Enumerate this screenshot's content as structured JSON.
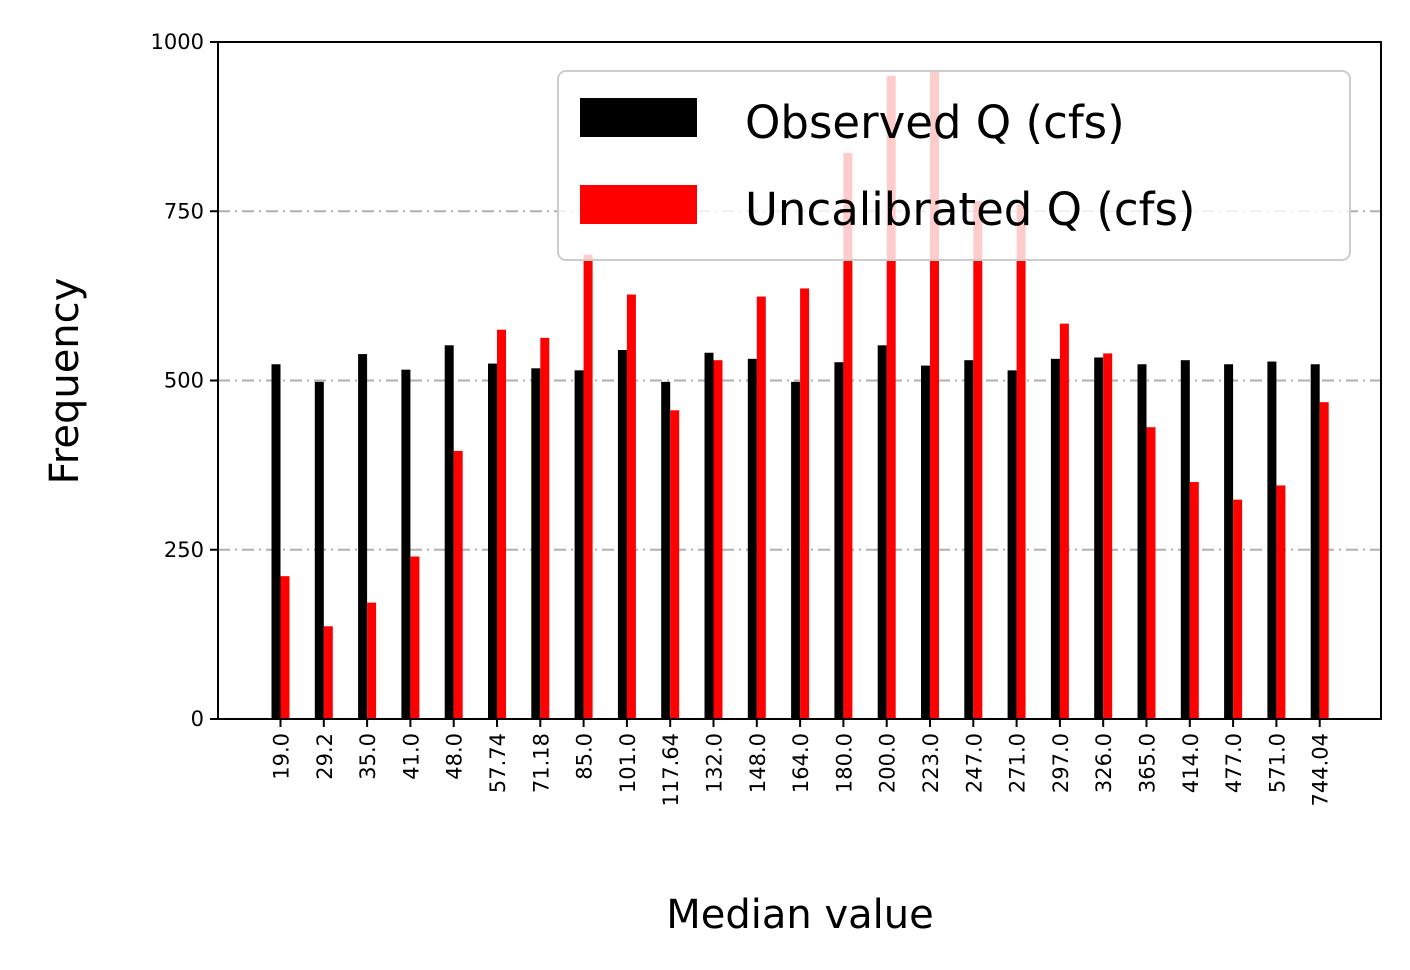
{
  "chart_data": {
    "type": "bar",
    "title": "",
    "xlabel": "Median value",
    "ylabel": "Frequency",
    "ylim": [
      0,
      1000
    ],
    "yticks": [
      "0",
      "250",
      "500",
      "750",
      "1000"
    ],
    "grid": "horizontal dash-dot",
    "legend_position": "top-right",
    "categories": [
      "19.0",
      "29.2",
      "35.0",
      "41.0",
      "48.0",
      "57.74",
      "71.18",
      "85.0",
      "101.0",
      "117.64",
      "132.0",
      "148.0",
      "164.0",
      "180.0",
      "200.0",
      "223.0",
      "247.0",
      "271.0",
      "297.0",
      "326.0",
      "365.0",
      "414.0",
      "477.0",
      "571.0",
      "744.04"
    ],
    "series": [
      {
        "name": "Observed Q (cfs)",
        "color": "#000000",
        "values": [
          524,
          498,
          539,
          516,
          552,
          525,
          518,
          515,
          545,
          498,
          541,
          532,
          498,
          527,
          552,
          522,
          530,
          515,
          532,
          534,
          524,
          530,
          524,
          528,
          524
        ]
      },
      {
        "name": "Uncalibrated Q (cfs)",
        "color": "#ff0000",
        "values": [
          211,
          137,
          172,
          240,
          396,
          575,
          563,
          686,
          627,
          456,
          530,
          624,
          636,
          836,
          950,
          957,
          765,
          760,
          584,
          540,
          431,
          350,
          324,
          345,
          468
        ]
      }
    ]
  }
}
